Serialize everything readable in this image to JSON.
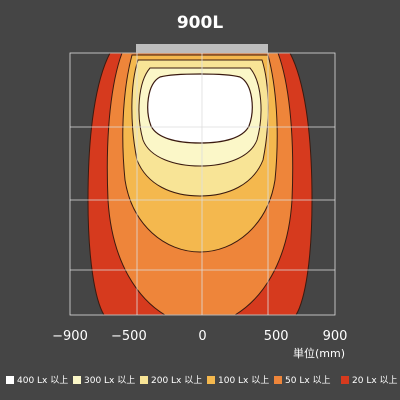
{
  "chart_data": {
    "type": "heatmap",
    "title": "900L",
    "xlabel": "単位(mm)",
    "x_ticks": [
      "−900",
      "−500",
      "0",
      "500",
      "900"
    ],
    "x_tick_values": [
      -900,
      -500,
      0,
      500,
      900
    ],
    "xlim": [
      -900,
      900
    ],
    "grid": true,
    "legend_placement": "bottom",
    "legend": [
      {
        "label": "400 Lx 以上",
        "color": "#ffffff"
      },
      {
        "label": "300 Lx 以上",
        "color": "#fbf7c8"
      },
      {
        "label": "200 Lx 以上",
        "color": "#f8e496"
      },
      {
        "label": "100 Lx 以上",
        "color": "#f4b84e"
      },
      {
        "label": "50 Lx 以上",
        "color": "#ee853a"
      },
      {
        "label": "20 Lx 以上",
        "color": "#d63a1e"
      }
    ],
    "light_width_mm": 900
  }
}
